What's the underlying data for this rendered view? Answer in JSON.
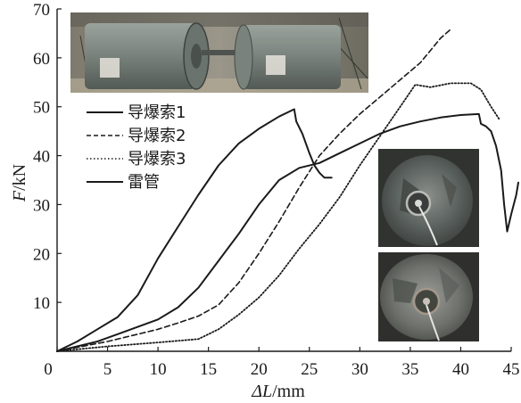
{
  "chart_data": {
    "type": "line",
    "xlabel_symbol": "ΔL",
    "xlabel_unit": "/mm",
    "ylabel_symbol": "F",
    "ylabel_unit": "/kN",
    "xlim": [
      0,
      45
    ],
    "ylim": [
      0,
      70
    ],
    "xticks": [
      0,
      5,
      10,
      15,
      20,
      25,
      30,
      35,
      40,
      45
    ],
    "yticks": [
      10,
      20,
      30,
      40,
      50,
      60,
      70
    ],
    "grid": false,
    "legend_position": "top-left",
    "series": [
      {
        "name": "导爆索1",
        "style": "solid",
        "color": "#1a1a1a",
        "points": [
          [
            0,
            0
          ],
          [
            2,
            2
          ],
          [
            4,
            4.5
          ],
          [
            6,
            7
          ],
          [
            8,
            11.5
          ],
          [
            10,
            19
          ],
          [
            12,
            25.5
          ],
          [
            14,
            32
          ],
          [
            16,
            38
          ],
          [
            18,
            42.5
          ],
          [
            20,
            45.5
          ],
          [
            22,
            48
          ],
          [
            23.5,
            49.5
          ],
          [
            23.7,
            47
          ],
          [
            24.3,
            44.5
          ],
          [
            25,
            40.5
          ],
          [
            25.5,
            38
          ],
          [
            26,
            36.5
          ],
          [
            26.5,
            35.5
          ],
          [
            27.2,
            35.5
          ]
        ]
      },
      {
        "name": "导爆索2",
        "style": "dashed",
        "color": "#1a1a1a",
        "points": [
          [
            0,
            0
          ],
          [
            5,
            2
          ],
          [
            8,
            3.5
          ],
          [
            10,
            4.5
          ],
          [
            12,
            5.8
          ],
          [
            14,
            7.2
          ],
          [
            16,
            9.5
          ],
          [
            18,
            14
          ],
          [
            20,
            20
          ],
          [
            22,
            26.5
          ],
          [
            24,
            33.5
          ],
          [
            26,
            40
          ],
          [
            28,
            44.5
          ],
          [
            30,
            48.5
          ],
          [
            32,
            52
          ],
          [
            34,
            55.5
          ],
          [
            36,
            59
          ],
          [
            38,
            64
          ],
          [
            39.1,
            66
          ]
        ]
      },
      {
        "name": "导爆索3",
        "style": "dotted",
        "color": "#1a1a1a",
        "points": [
          [
            0,
            0
          ],
          [
            5,
            1
          ],
          [
            10,
            1.8
          ],
          [
            14,
            2.5
          ],
          [
            16,
            4.5
          ],
          [
            18,
            7.5
          ],
          [
            20,
            11
          ],
          [
            22,
            15.5
          ],
          [
            24,
            21
          ],
          [
            26,
            26
          ],
          [
            28,
            31.5
          ],
          [
            30,
            38
          ],
          [
            32,
            44
          ],
          [
            34,
            50
          ],
          [
            35.5,
            54.5
          ],
          [
            37,
            54
          ],
          [
            39,
            54.8
          ],
          [
            41,
            54.8
          ],
          [
            42,
            53.5
          ],
          [
            43,
            50
          ],
          [
            43.8,
            47.5
          ]
        ]
      },
      {
        "name": "雷管",
        "style": "solid",
        "color": "#1a1a1a",
        "points": [
          [
            0,
            0
          ],
          [
            2,
            1
          ],
          [
            4,
            2
          ],
          [
            6,
            3.5
          ],
          [
            8,
            5
          ],
          [
            10,
            6.5
          ],
          [
            12,
            9
          ],
          [
            14,
            13
          ],
          [
            16,
            18.5
          ],
          [
            18,
            24
          ],
          [
            20,
            30
          ],
          [
            22,
            35
          ],
          [
            24,
            37.5
          ],
          [
            26,
            38.5
          ],
          [
            28,
            40.5
          ],
          [
            30,
            42.5
          ],
          [
            32,
            44.5
          ],
          [
            34,
            46
          ],
          [
            36,
            47
          ],
          [
            38,
            47.8
          ],
          [
            40,
            48.3
          ],
          [
            41.8,
            48.5
          ],
          [
            42,
            46.5
          ],
          [
            42.5,
            46
          ],
          [
            43,
            45
          ],
          [
            43.5,
            42
          ],
          [
            44,
            37
          ],
          [
            44.3,
            30
          ],
          [
            44.6,
            24.5
          ],
          [
            45,
            28
          ],
          [
            45.5,
            32
          ],
          [
            46,
            34.5
          ]
        ]
      }
    ]
  },
  "photos": [
    {
      "subject": "test-specimen-pair"
    },
    {
      "subject": "fractured-end-face-upper"
    },
    {
      "subject": "fractured-end-face-lower"
    }
  ]
}
